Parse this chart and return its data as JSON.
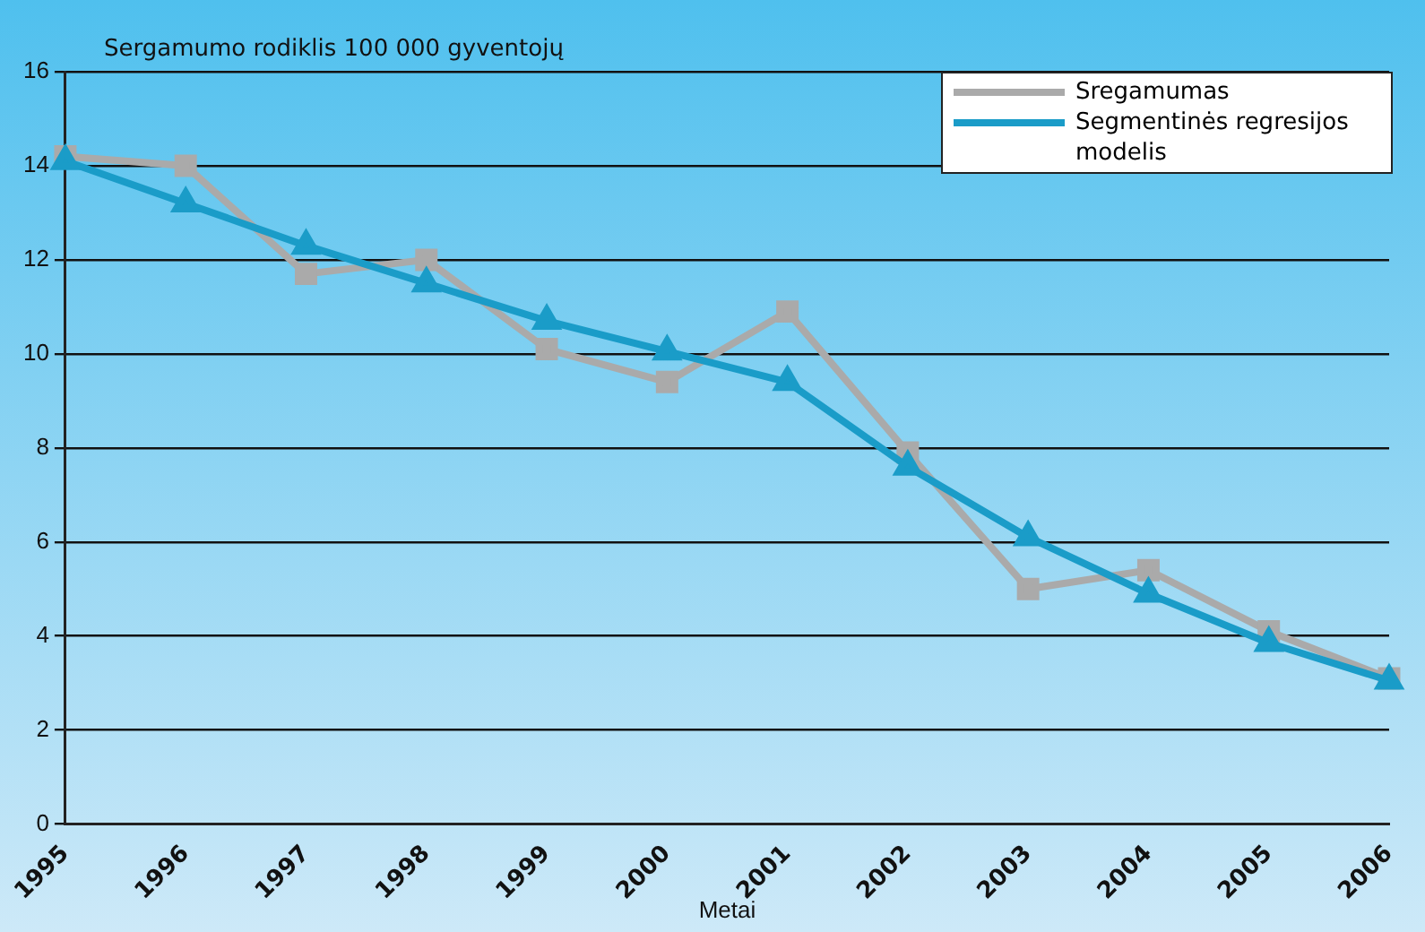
{
  "chart_data": {
    "type": "line",
    "ylabel": "Sergamumo rodiklis 100 000 gyventojų",
    "xlabel": "Metai",
    "categories": [
      "1995",
      "1996",
      "1997",
      "1998",
      "1999",
      "2000",
      "2001",
      "2002",
      "2003",
      "2004",
      "2005",
      "2006"
    ],
    "series": [
      {
        "name": "Sregamumas",
        "color": "#aaaaaa",
        "marker": "square",
        "values": [
          14.2,
          14.0,
          11.7,
          12.0,
          10.1,
          9.4,
          10.9,
          7.9,
          5.0,
          5.4,
          4.1,
          3.1
        ]
      },
      {
        "name": "Segmentinės regresijos modelis",
        "color": "#1a9cc8",
        "marker": "triangle",
        "values": [
          14.1,
          13.2,
          12.3,
          11.5,
          10.7,
          10.05,
          9.4,
          7.6,
          6.1,
          4.9,
          3.85,
          3.05
        ]
      }
    ],
    "ylim": [
      0,
      16
    ],
    "yticks": [
      0,
      2,
      4,
      6,
      8,
      10,
      12,
      14,
      16
    ],
    "grid": "y",
    "legend": "top right",
    "line_style": "solid"
  }
}
